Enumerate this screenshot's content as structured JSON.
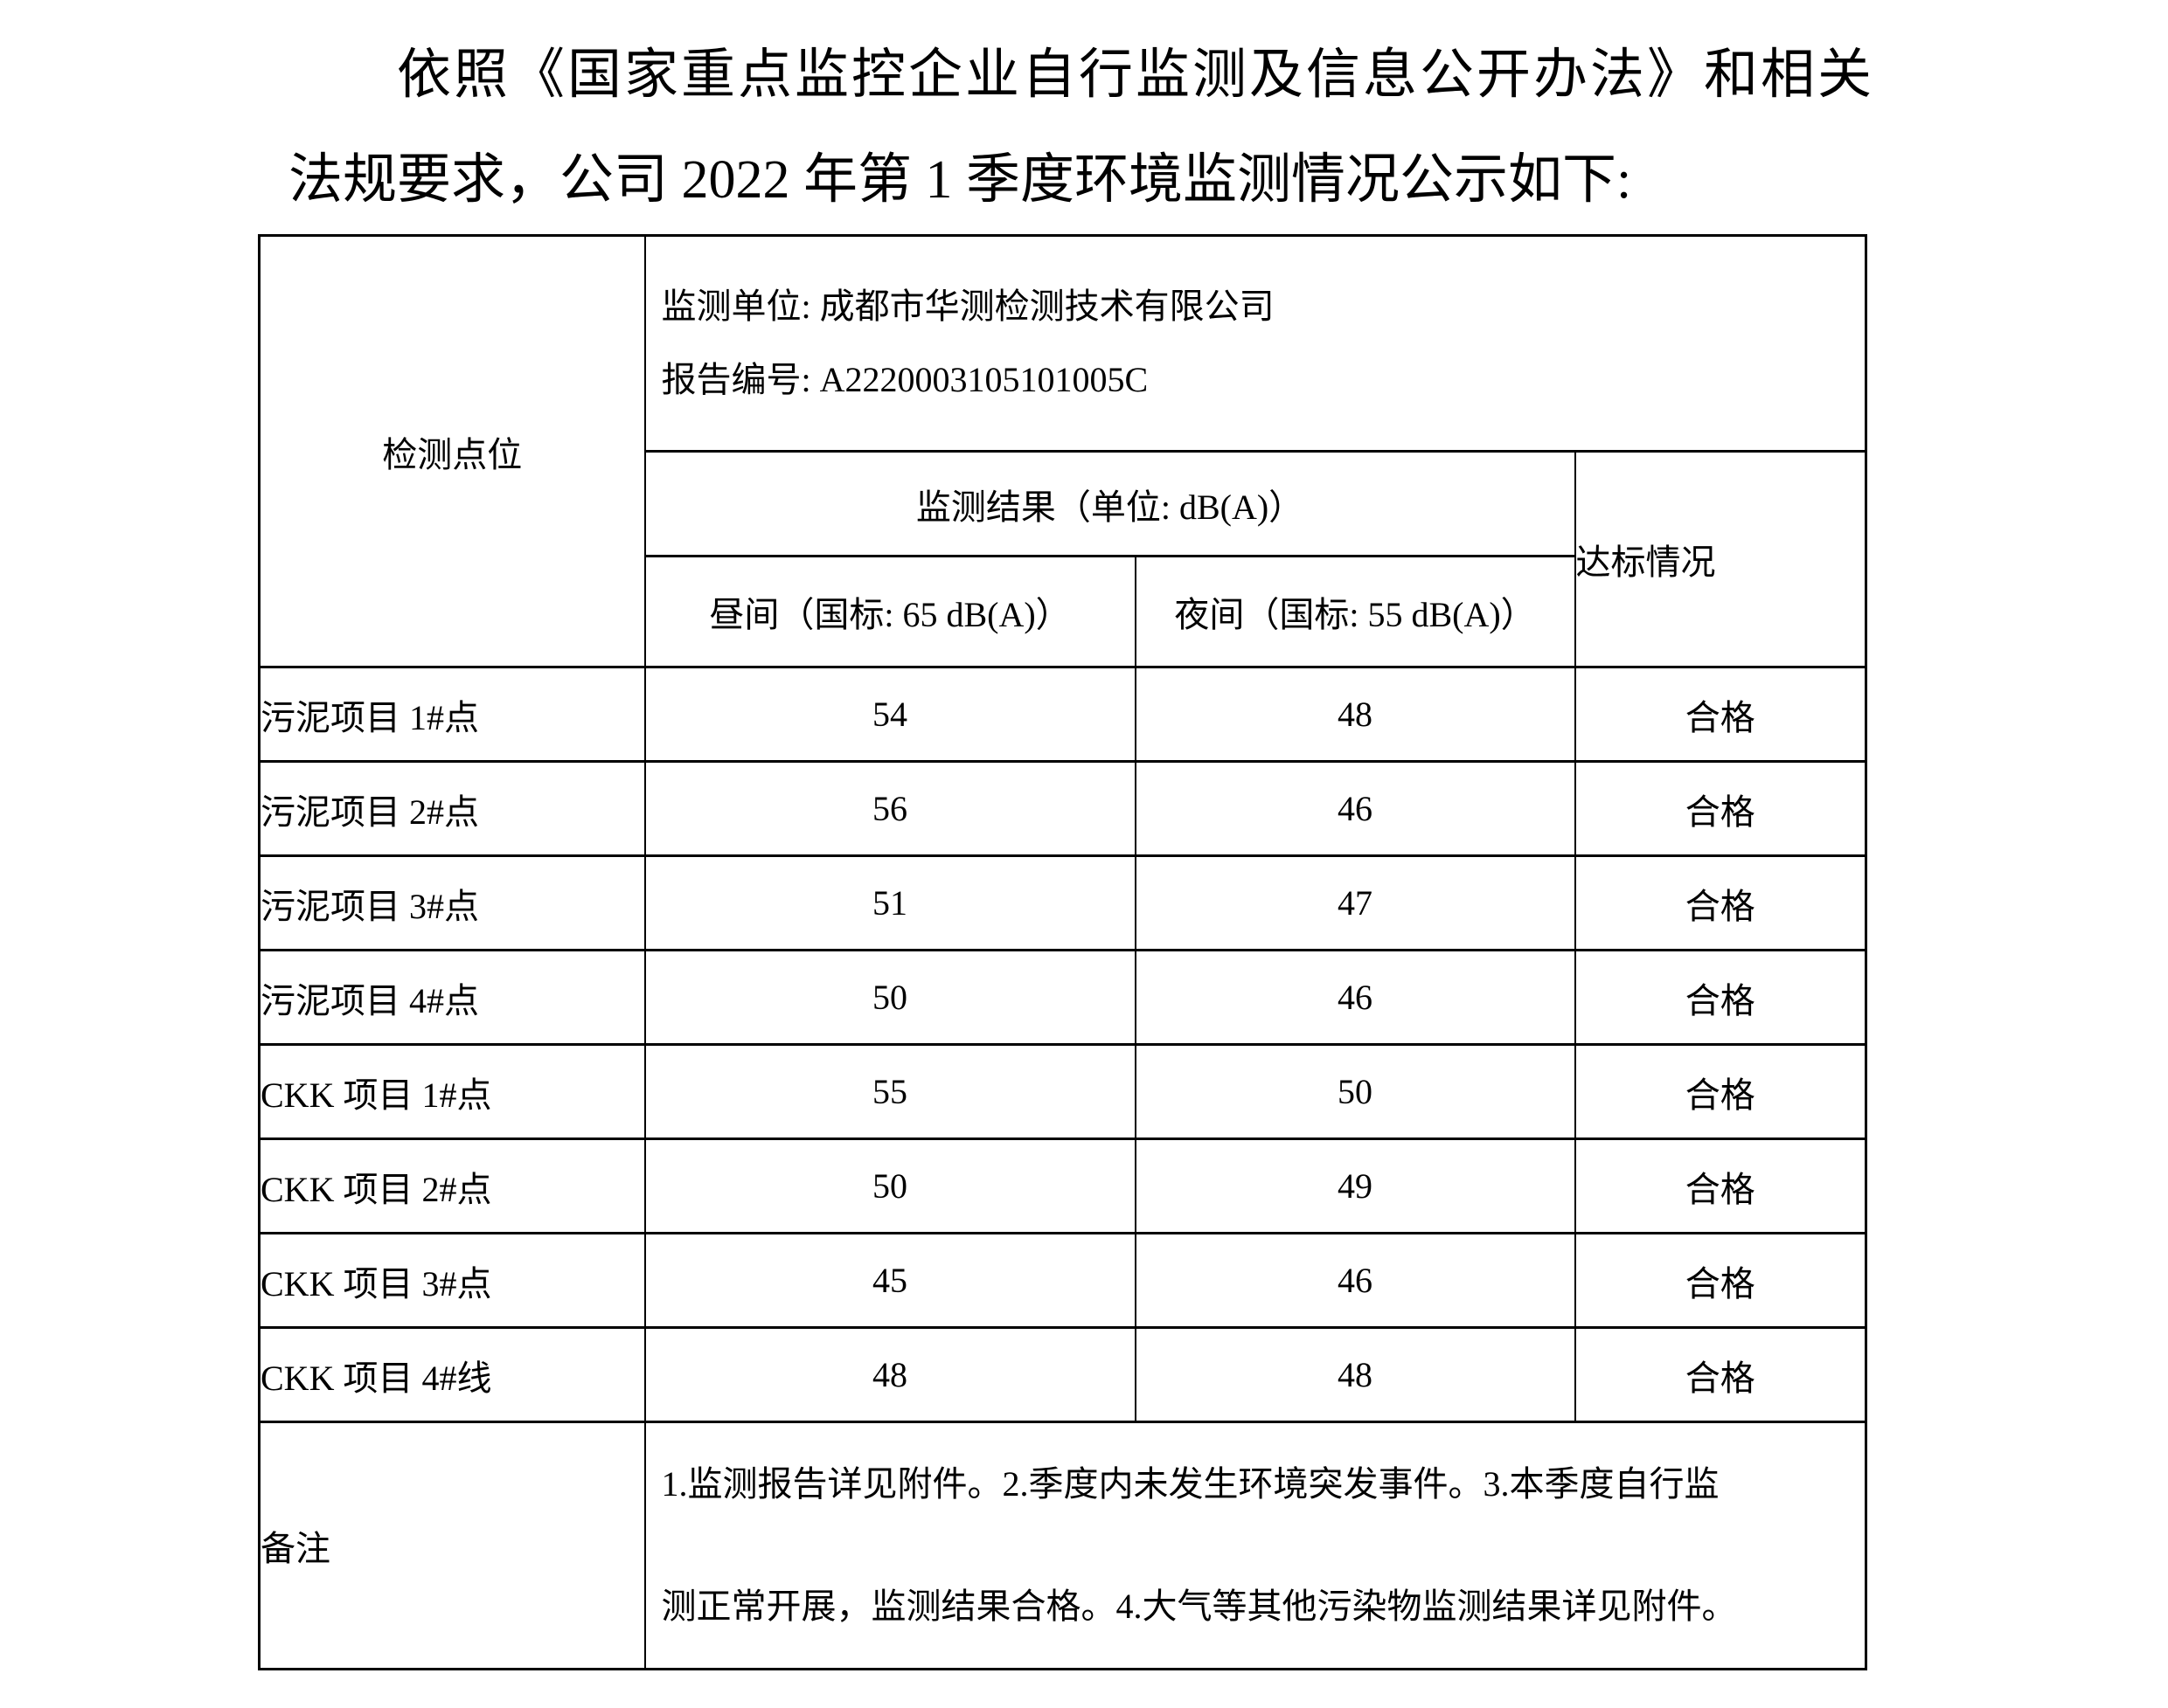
{
  "intro": {
    "line1": "依照《国家重点监控企业自行监测及信息公开办法》和相关",
    "line2": "法规要求，公司 2022 年第 1 季度环境监测情况公示如下:"
  },
  "table": {
    "corner_header": "检测点位",
    "unit_line": "监测单位: 成都市华测检测技术有限公司",
    "report_line": "报告编号: A2220003105101005C",
    "result_header": "监测结果（单位: dB(A)）",
    "compliance_header": "达标情况",
    "day_header": "昼间（国标: 65 dB(A)）",
    "night_header": "夜间（国标: 55 dB(A)）",
    "rows": [
      {
        "site": "污泥项目 1#点",
        "day": "54",
        "night": "48",
        "status": "合格"
      },
      {
        "site": "污泥项目 2#点",
        "day": "56",
        "night": "46",
        "status": "合格"
      },
      {
        "site": "污泥项目 3#点",
        "day": "51",
        "night": "47",
        "status": "合格"
      },
      {
        "site": "污泥项目 4#点",
        "day": "50",
        "night": "46",
        "status": "合格"
      },
      {
        "site": "CKK 项目 1#点",
        "day": "55",
        "night": "50",
        "status": "合格"
      },
      {
        "site": "CKK 项目 2#点",
        "day": "50",
        "night": "49",
        "status": "合格"
      },
      {
        "site": "CKK 项目 3#点",
        "day": "45",
        "night": "46",
        "status": "合格"
      },
      {
        "site": "CKK 项目 4#线",
        "day": "48",
        "night": "48",
        "status": "合格"
      }
    ],
    "remarks_label": "备注",
    "remarks_lines": [
      "1.监测报告详见附件。2.季度内未发生环境突发事件。3.本季度自行监",
      "测正常开展，监测结果合格。4.大气等其他污染物监测结果详见附件。"
    ]
  }
}
